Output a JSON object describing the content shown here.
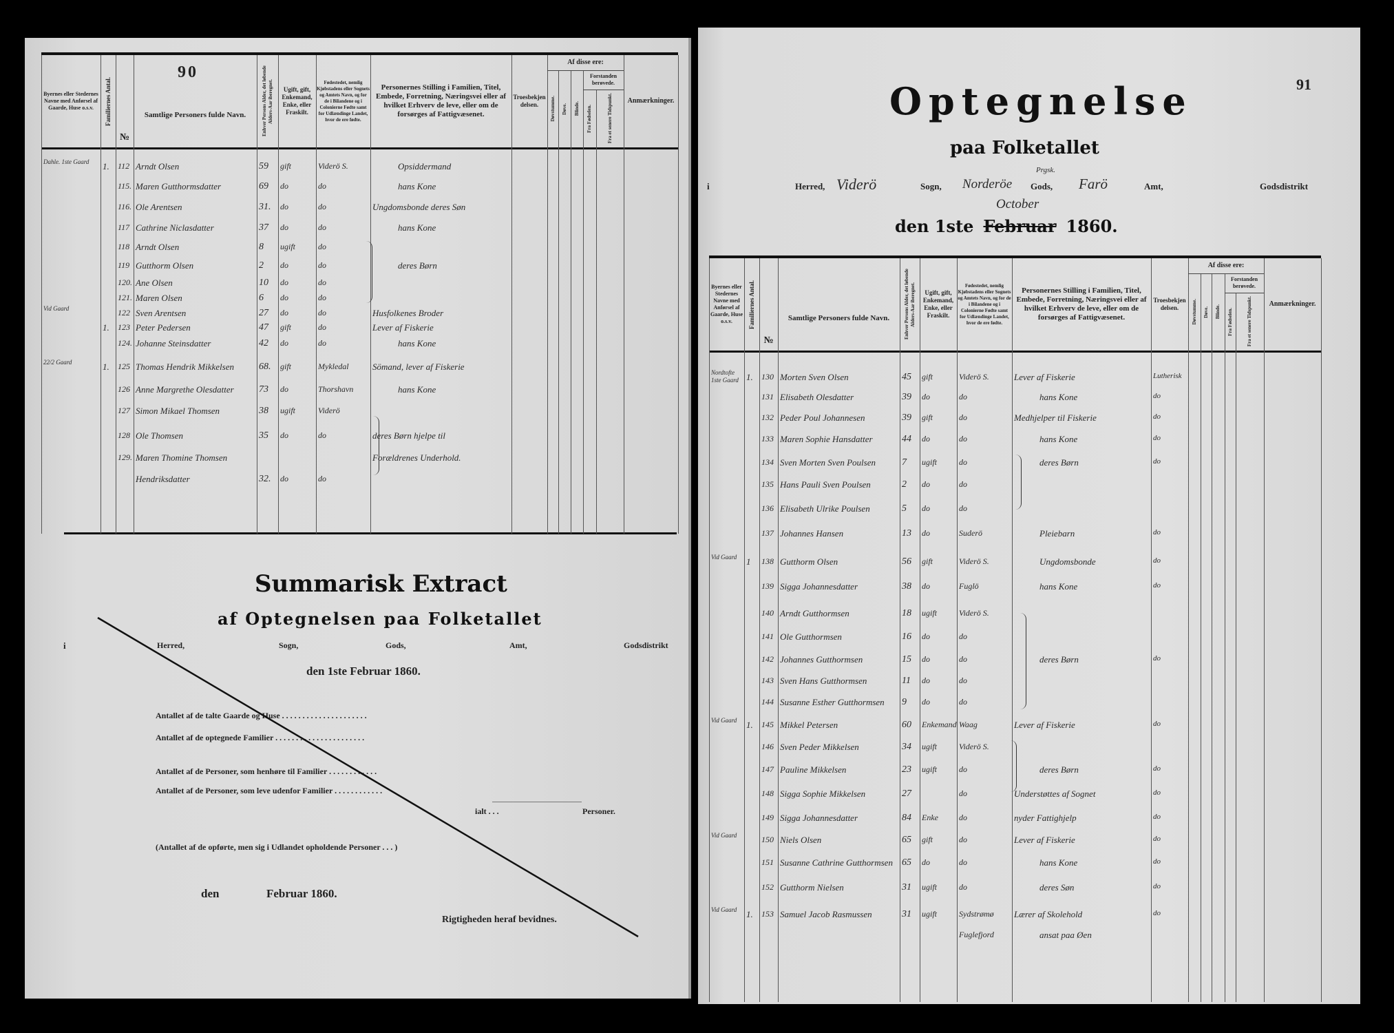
{
  "column_headers": {
    "place": "Byernes eller Stedernes Navne med Anførsel af Gaarde, Huse o.s.v.",
    "families": "Familiernes Antal.",
    "number": "№",
    "name": "Samtlige Personers fulde Navn.",
    "age": "Enhver Persons Alder, det løbende Alders-Aar iberegnet.",
    "civil": "Ugift, gift, Enkemand, Enke, eller Fraskilt.",
    "birthplace": "Fødestedet, nemlig Kjøbstadens eller Sognets og Amtets Navn, og for de i Bilandene og i Colonierne Fødte samt for Udlændinge Landet, hvor de ere fødte.",
    "position": "Personernes Stilling i Familien, Titel, Embede, Forretning, Næringsvei eller af hvilket Erhverv de leve, eller om de forsørges af Fattigvæsenet.",
    "faith": "Troesbekjendelsen.",
    "of_these": "Af disse ere:",
    "deafmute": "Døvstumme.",
    "deaf": "Døve.",
    "blind": "Blinde.",
    "insane": "Forstanden berøvede.",
    "from_birth": "Fra Fødselen.",
    "later": "Fra et senere Tidspunkt.",
    "remarks": "Anmærkninger."
  },
  "left_page": {
    "page_number": "90",
    "rows": [
      {
        "place": "Dahle. 1ste Gaard",
        "fam": "1.",
        "nr": "112",
        "name": "Arndt Olsen",
        "age": "59",
        "civil": "gift",
        "birth": "Viderö S.",
        "position": "Opsiddermand",
        "faith": ""
      },
      {
        "place": "",
        "fam": "",
        "nr": "115.",
        "name": "Maren Gutthormsdatter",
        "age": "69",
        "civil": "do",
        "birth": "do",
        "position": "hans Kone",
        "faith": ""
      },
      {
        "place": "",
        "fam": "",
        "nr": "116.",
        "name": "Ole Arentsen",
        "age": "31.",
        "civil": "do",
        "birth": "do",
        "position": "Ungdomsbonde deres Søn",
        "faith": ""
      },
      {
        "place": "",
        "fam": "",
        "nr": "117",
        "name": "Cathrine Niclasdatter",
        "age": "37",
        "civil": "do",
        "birth": "do",
        "position": "hans Kone",
        "faith": ""
      },
      {
        "place": "",
        "fam": "",
        "nr": "118",
        "name": "Arndt Olsen",
        "age": "8",
        "civil": "ugift",
        "birth": "do",
        "position": "",
        "faith": ""
      },
      {
        "place": "",
        "fam": "",
        "nr": "119",
        "name": "Gutthorm Olsen",
        "age": "2",
        "civil": "do",
        "birth": "do",
        "position": "deres Børn",
        "faith": ""
      },
      {
        "place": "",
        "fam": "",
        "nr": "120.",
        "name": "Ane Olsen",
        "age": "10",
        "civil": "do",
        "birth": "do",
        "position": "",
        "faith": ""
      },
      {
        "place": "",
        "fam": "",
        "nr": "121.",
        "name": "Maren Olsen",
        "age": "6",
        "civil": "do",
        "birth": "do",
        "position": "",
        "faith": ""
      },
      {
        "place": "Vid Gaard",
        "fam": "",
        "nr": "122",
        "name": "Sven Arentsen",
        "age": "27",
        "civil": "do",
        "birth": "do",
        "position": "Husfolkenes Broder",
        "faith": ""
      },
      {
        "place": "",
        "fam": "1.",
        "nr": "123",
        "name": "Peter Pedersen",
        "age": "47",
        "civil": "gift",
        "birth": "do",
        "position": "Lever af Fiskerie",
        "faith": ""
      },
      {
        "place": "",
        "fam": "",
        "nr": "124.",
        "name": "Johanne Steinsdatter",
        "age": "42",
        "civil": "do",
        "birth": "do",
        "position": "hans Kone",
        "faith": ""
      },
      {
        "place": "22/2 Gaard",
        "fam": "1.",
        "nr": "125",
        "name": "Thomas Hendrik Mikkelsen",
        "age": "68.",
        "civil": "gift",
        "birth": "Mykledal",
        "position": "Sömand, lever af Fiskerie",
        "faith": ""
      },
      {
        "place": "",
        "fam": "",
        "nr": "126",
        "name": "Anne Margrethe Olesdatter",
        "age": "73",
        "civil": "do",
        "birth": "Thorshavn",
        "position": "hans Kone",
        "faith": ""
      },
      {
        "place": "",
        "fam": "",
        "nr": "127",
        "name": "Simon Mikael Thomsen",
        "age": "38",
        "civil": "ugift",
        "birth": "Viderö",
        "position": "",
        "faith": ""
      },
      {
        "place": "",
        "fam": "",
        "nr": "128",
        "name": "Ole Thomsen",
        "age": "35",
        "civil": "do",
        "birth": "do",
        "position": "deres Børn hjelpe til",
        "faith": ""
      },
      {
        "place": "",
        "fam": "",
        "nr": "129.",
        "name": "Maren Thomine Thomsen",
        "age": "",
        "civil": "",
        "birth": "",
        "position": "Forældrenes Underhold.",
        "faith": ""
      },
      {
        "place": "",
        "fam": "",
        "nr": "",
        "name": "Hendriksdatter",
        "age": "32.",
        "civil": "do",
        "birth": "do",
        "position": "",
        "faith": ""
      }
    ]
  },
  "summary": {
    "title": "Summarisk Extract",
    "subtitle": "af Optegnelsen paa Folketallet",
    "i": "i",
    "herred": "Herred,",
    "sogn": "Sogn,",
    "gods": "Gods,",
    "amt": "Amt,",
    "godsdistrikt": "Godsdistrikt",
    "date": "den 1ste Februar 1860.",
    "lines": [
      "Antallet af de talte Gaarde og Huse  . . . . . . . . . . . . . . . . . . . . .",
      "Antallet af de optegnede Familier  . . . . . . . . . . . . . . . . . . . . . .",
      "Antallet af de Personer, som henhøre til Familier  . . . . . . . . . . . .",
      "Antallet af de Personer, som leve udenfor Familier  . . . . . . . . . . . ."
    ],
    "ialt": "ialt . . .",
    "personer": "Personer.",
    "abroad": "(Antallet af de opførte, men sig i Udlandet opholdende Personer  . . .                )",
    "den": "den",
    "februar": "Februar 1860.",
    "certify": "Rigtigheden heraf bevidnes."
  },
  "right_page": {
    "page_number": "91",
    "title": "Optegnelse",
    "subtitle": "paa Folketallet",
    "i": "i",
    "herred_label": "Herred,",
    "herred_value": "Viderö",
    "sogn_label": "Sogn,",
    "sogn_value": "Norderöe",
    "gods_note": "Prgsk.",
    "gods_label": "Gods,",
    "amt_value": "Farö",
    "amt_label": "Amt,",
    "godsdistrikt_label": "Godsdistrikt",
    "month_correction": "October",
    "date_prefix": "den 1ste",
    "date_struck": "Februar",
    "date_year": "1860.",
    "rows": [
      {
        "place": "Nordtofte 1ste Gaard",
        "fam": "1.",
        "nr": "130",
        "name": "Morten Sven Olsen",
        "age": "45",
        "civil": "gift",
        "birth": "Viderö S.",
        "position": "Lever af Fiskerie",
        "faith": "Lutherisk"
      },
      {
        "place": "",
        "fam": "",
        "nr": "131",
        "name": "Elisabeth Olesdatter",
        "age": "39",
        "civil": "do",
        "birth": "do",
        "position": "hans Kone",
        "faith": "do"
      },
      {
        "place": "",
        "fam": "",
        "nr": "132",
        "name": "Peder Poul Johannesen",
        "age": "39",
        "civil": "gift",
        "birth": "do",
        "position": "Medhjelper til Fiskerie",
        "faith": "do"
      },
      {
        "place": "",
        "fam": "",
        "nr": "133",
        "name": "Maren Sophie Hansdatter",
        "age": "44",
        "civil": "do",
        "birth": "do",
        "position": "hans Kone",
        "faith": "do"
      },
      {
        "place": "",
        "fam": "",
        "nr": "134",
        "name": "Sven Morten Sven Poulsen",
        "age": "7",
        "civil": "ugift",
        "birth": "do",
        "position": "deres Børn",
        "faith": "do"
      },
      {
        "place": "",
        "fam": "",
        "nr": "135",
        "name": "Hans Pauli Sven Poulsen",
        "age": "2",
        "civil": "do",
        "birth": "do",
        "position": "",
        "faith": ""
      },
      {
        "place": "",
        "fam": "",
        "nr": "136",
        "name": "Elisabeth Ulrike Poulsen",
        "age": "5",
        "civil": "do",
        "birth": "do",
        "position": "",
        "faith": ""
      },
      {
        "place": "",
        "fam": "",
        "nr": "137",
        "name": "Johannes Hansen",
        "age": "13",
        "civil": "do",
        "birth": "Suderö",
        "position": "Pleiebarn",
        "faith": "do"
      },
      {
        "place": "Vid Gaard",
        "fam": "1",
        "nr": "138",
        "name": "Gutthorm Olsen",
        "age": "56",
        "civil": "gift",
        "birth": "Viderö S.",
        "position": "Ungdomsbonde",
        "faith": "do"
      },
      {
        "place": "",
        "fam": "",
        "nr": "139",
        "name": "Sigga Johannesdatter",
        "age": "38",
        "civil": "do",
        "birth": "Fuglö",
        "position": "hans Kone",
        "faith": "do"
      },
      {
        "place": "",
        "fam": "",
        "nr": "140",
        "name": "Arndt Gutthormsen",
        "age": "18",
        "civil": "ugift",
        "birth": "Viderö S.",
        "position": "",
        "faith": ""
      },
      {
        "place": "",
        "fam": "",
        "nr": "141",
        "name": "Ole Gutthormsen",
        "age": "16",
        "civil": "do",
        "birth": "do",
        "position": "",
        "faith": ""
      },
      {
        "place": "",
        "fam": "",
        "nr": "142",
        "name": "Johannes Gutthormsen",
        "age": "15",
        "civil": "do",
        "birth": "do",
        "position": "deres Børn",
        "faith": "do"
      },
      {
        "place": "",
        "fam": "",
        "nr": "143",
        "name": "Sven Hans Gutthormsen",
        "age": "11",
        "civil": "do",
        "birth": "do",
        "position": "",
        "faith": ""
      },
      {
        "place": "",
        "fam": "",
        "nr": "144",
        "name": "Susanne Esther Gutthormsen",
        "age": "9",
        "civil": "do",
        "birth": "do",
        "position": "",
        "faith": ""
      },
      {
        "place": "Vid Gaard",
        "fam": "1.",
        "nr": "145",
        "name": "Mikkel Petersen",
        "age": "60",
        "civil": "Enkemand",
        "birth": "Waag",
        "position": "Lever af Fiskerie",
        "faith": "do"
      },
      {
        "place": "",
        "fam": "",
        "nr": "146",
        "name": "Sven Peder Mikkelsen",
        "age": "34",
        "civil": "ugift",
        "birth": "Viderö S.",
        "position": "",
        "faith": ""
      },
      {
        "place": "",
        "fam": "",
        "nr": "147",
        "name": "Pauline Mikkelsen",
        "age": "23",
        "civil": "ugift",
        "birth": "do",
        "position": "deres Børn",
        "faith": "do"
      },
      {
        "place": "",
        "fam": "",
        "nr": "148",
        "name": "Sigga Sophie Mikkelsen",
        "age": "27",
        "civil": "",
        "birth": "do",
        "position": "Understøttes af Sognet",
        "faith": "do"
      },
      {
        "place": "",
        "fam": "",
        "nr": "149",
        "name": "Sigga Johannesdatter",
        "age": "84",
        "civil": "Enke",
        "birth": "do",
        "position": "nyder Fattighjelp",
        "faith": "do"
      },
      {
        "place": "Vid Gaard",
        "fam": "",
        "nr": "150",
        "name": "Niels Olsen",
        "age": "65",
        "civil": "gift",
        "birth": "do",
        "position": "Lever af Fiskerie",
        "faith": "do"
      },
      {
        "place": "",
        "fam": "",
        "nr": "151",
        "name": "Susanne Cathrine Gutthormsen",
        "age": "65",
        "civil": "do",
        "birth": "do",
        "position": "hans Kone",
        "faith": "do"
      },
      {
        "place": "",
        "fam": "",
        "nr": "152",
        "name": "Gutthorm Nielsen",
        "age": "31",
        "civil": "ugift",
        "birth": "do",
        "position": "deres Søn",
        "faith": "do"
      },
      {
        "place": "Vid Gaard",
        "fam": "1.",
        "nr": "153",
        "name": "Samuel Jacob Rasmussen",
        "age": "31",
        "civil": "ugift",
        "birth": "Sydstrømø",
        "position": "Lærer af Skolehold",
        "faith": "do"
      },
      {
        "place": "",
        "fam": "",
        "nr": "",
        "name": "",
        "age": "",
        "civil": "",
        "birth": "Fuglefjord",
        "position": "ansat paa Øen",
        "faith": ""
      }
    ]
  }
}
